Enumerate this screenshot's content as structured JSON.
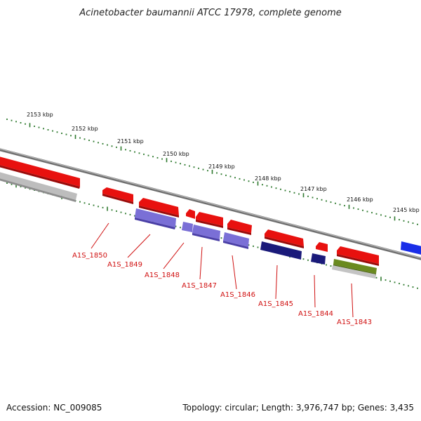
{
  "title": "Acinetobacter baumannii ATCC 17978, complete genome",
  "accession_text": "Accession: NC_009085",
  "topology_text": "Topology: circular; Length: 3,976,747 bp; Genes: 3,435",
  "ruler_labels": [
    "2153 kbp",
    "2152 kbp",
    "2151 kbp",
    "2150 kbp",
    "2149 kbp",
    "2148 kbp",
    "2147 kbp",
    "2146 kbp",
    "2145 kbp"
  ],
  "gene_labels": [
    "A1S_1850",
    "A1S_1849",
    "A1S_1848",
    "A1S_1847",
    "A1S_1846",
    "A1S_1845",
    "A1S_1844",
    "A1S_1843"
  ],
  "colors": {
    "cds_red": "#e8110f",
    "gene_purple": "#7a6fd6",
    "gene_navy": "#1a1a7a",
    "gene_olive": "#6a8a1f",
    "grey_feature": "#b5b5b5",
    "blue_feature": "#1a2ee8",
    "backbone": "#8a8a8a",
    "tick_green": "#2f7a2f",
    "label_red": "#d01010"
  }
}
